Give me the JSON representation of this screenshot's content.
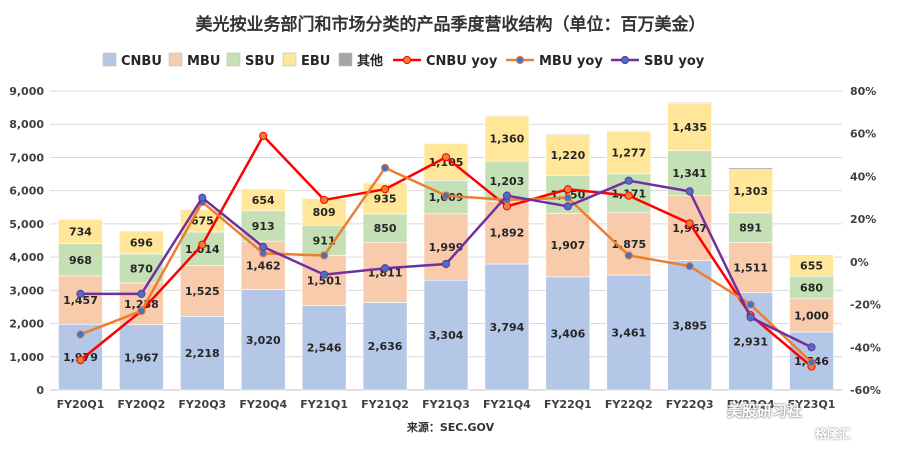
{
  "title": "美光按业务部门和市场分类的产品季度营收结构（单位：百万美金）",
  "source": "来源：SEC.GOV",
  "watermark": {
    "text": "美股研习社",
    "sub": "格隆汇"
  },
  "chart_data": {
    "type": "bar",
    "stacked": true,
    "categories": [
      "FY20Q1",
      "FY20Q2",
      "FY20Q3",
      "FY20Q4",
      "FY21Q1",
      "FY21Q2",
      "FY21Q3",
      "FY21Q4",
      "FY22Q1",
      "FY22Q2",
      "FY22Q3",
      "FY22Q4",
      "FY23Q1"
    ],
    "category_labels": [
      "FY20Q1",
      "FY20Q2",
      "FY20Q3",
      "FY20Q4",
      "FY21Q1",
      "FY21Q2",
      "FY21Q3",
      "FY21Q4",
      "FY22Q1",
      "FY22Q2",
      "FY22Q3",
      "FY22Q4",
      "FY23Q1"
    ],
    "series": [
      {
        "name": "CNBU",
        "kind": "bar",
        "color": "#b4c7e7",
        "values": [
          1979,
          1967,
          2218,
          3020,
          2546,
          2636,
          3304,
          3794,
          3406,
          3461,
          3895,
          2931,
          1746
        ]
      },
      {
        "name": "MBU",
        "kind": "bar",
        "color": "#f8cbad",
        "values": [
          1457,
          1258,
          1525,
          1462,
          1501,
          1811,
          1999,
          1892,
          1907,
          1875,
          1967,
          1511,
          1000
        ]
      },
      {
        "name": "SBU",
        "kind": "bar",
        "color": "#c5e0b4",
        "values": [
          968,
          870,
          1014,
          913,
          911,
          850,
          1009,
          1203,
          1150,
          1171,
          1341,
          891,
          680
        ]
      },
      {
        "name": "EBU",
        "kind": "bar",
        "color": "#ffe699",
        "values": [
          734,
          696,
          675,
          654,
          809,
          935,
          1105,
          1360,
          1220,
          1277,
          1435,
          1303,
          655
        ]
      },
      {
        "name": "其他",
        "kind": "bar",
        "color": "#a5a5a5",
        "values": [
          13,
          17,
          10,
          7,
          6,
          8,
          20,
          21,
          24,
          25,
          25,
          49,
          4
        ]
      },
      {
        "name": "CNBU yoy",
        "kind": "line",
        "color": "#ff0000",
        "marker": "#ed7d31",
        "values": [
          -46,
          -23,
          8,
          59,
          29,
          34,
          49,
          26,
          34,
          31,
          18,
          -25,
          -49
        ]
      },
      {
        "name": "MBU yoy",
        "kind": "line",
        "color": "#ed7d31",
        "marker": "#4472c4",
        "values": [
          -34,
          -23,
          28,
          4,
          3,
          44,
          31,
          29,
          30,
          3,
          -2,
          -20,
          -47
        ]
      },
      {
        "name": "SBU yoy",
        "kind": "line",
        "color": "#7030a0",
        "marker": "#4472c4",
        "values": [
          -15,
          -15,
          30,
          7,
          -6,
          -3,
          -1,
          31,
          26,
          38,
          33,
          -26,
          -40
        ]
      }
    ],
    "y_left": {
      "min": 0,
      "max": 9000,
      "step": 1000
    },
    "y_right": {
      "min": -60,
      "max": 80,
      "step": 20,
      "unit": "%"
    },
    "legend": "top",
    "grid": true
  }
}
